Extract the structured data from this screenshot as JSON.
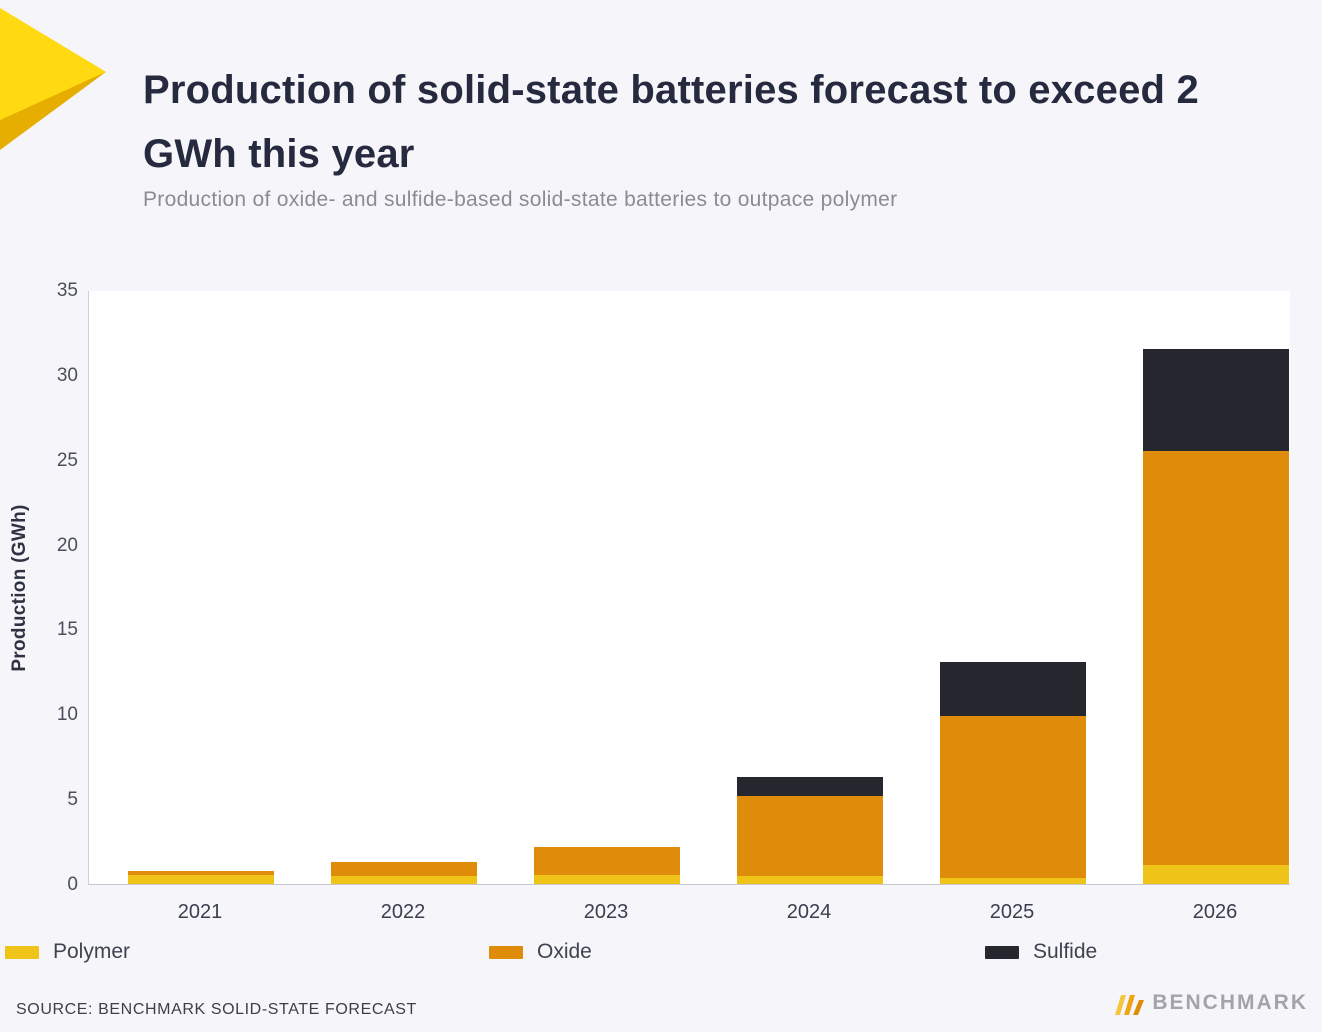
{
  "header": {
    "title": "Production of solid-state batteries forecast to exceed 2 GWh this year",
    "subtitle": "Production of oxide- and sulfide-based solid-state batteries to outpace polymer"
  },
  "chart_data": {
    "type": "bar",
    "stacked": true,
    "title": "Production of solid-state batteries forecast to exceed 2 GWh this year",
    "subtitle": "Production of oxide- and sulfide-based solid-state batteries to outpace polymer",
    "categories": [
      "2021",
      "2022",
      "2023",
      "2024",
      "2025",
      "2026"
    ],
    "series": [
      {
        "name": "Polymer",
        "color": "#F0C319",
        "values": [
          0.55,
          0.45,
          0.55,
          0.5,
          0.35,
          1.1
        ]
      },
      {
        "name": "Oxide",
        "color": "#DE8C0A",
        "values": [
          0.2,
          0.85,
          1.65,
          4.7,
          9.55,
          24.4
        ]
      },
      {
        "name": "Sulfide",
        "color": "#25262E",
        "values": [
          0,
          0,
          0,
          1.1,
          3.2,
          6.0
        ]
      }
    ],
    "xlabel": "",
    "ylabel": "Production (GWh)",
    "ylim": [
      0,
      35
    ],
    "yticks": [
      0,
      5,
      10,
      15,
      20,
      25,
      30,
      35
    ],
    "legend_position": "bottom",
    "grid": false
  },
  "footer": {
    "source": "SOURCE: BENCHMARK SOLID-STATE FORECAST",
    "brand": "BENCHMARK"
  }
}
